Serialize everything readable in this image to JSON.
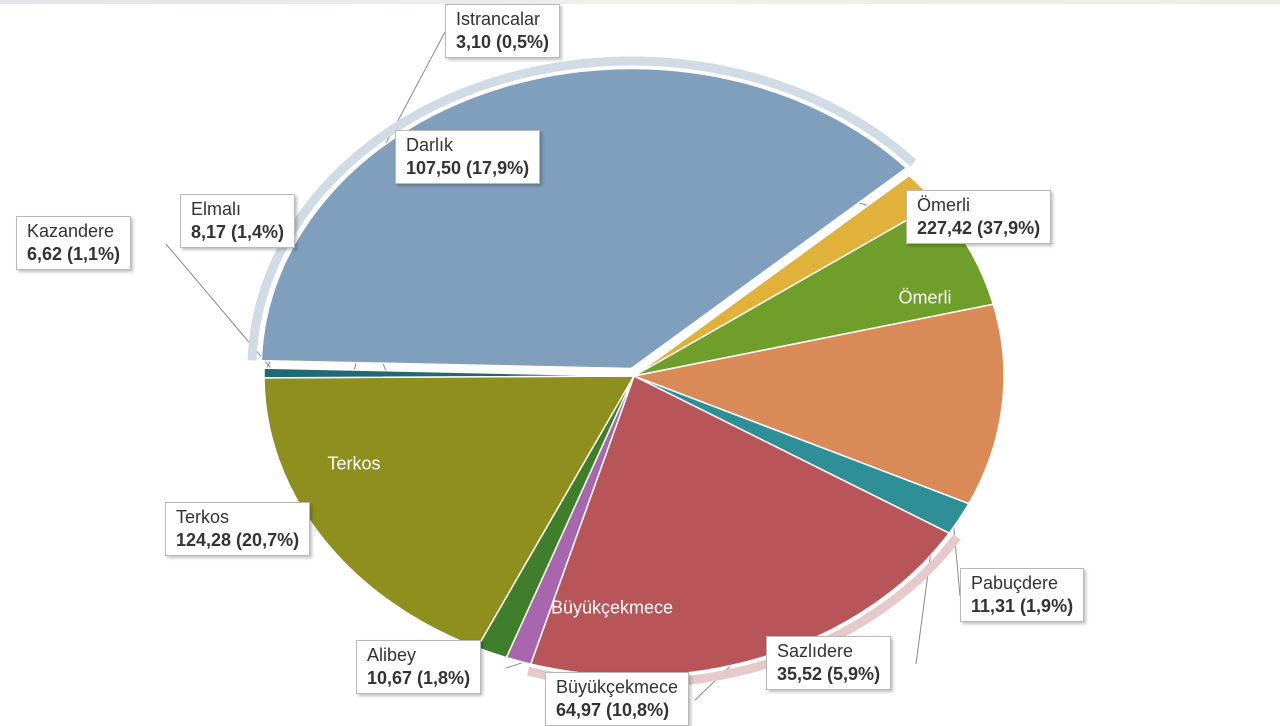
{
  "chart_data": {
    "type": "pie",
    "title": "",
    "slices": [
      {
        "name": "Ömerli",
        "value": 227.42,
        "percent": 37.9,
        "value_label": "227,42 (37,9%)",
        "color": "#7f9fbd",
        "inner_label": "Ömerli"
      },
      {
        "name": "Pabuçdere",
        "value": 11.31,
        "percent": 1.9,
        "value_label": "11,31 (1,9%)",
        "color": "#e0b23a"
      },
      {
        "name": "Sazlıdere",
        "value": 35.52,
        "percent": 5.9,
        "value_label": "35,52 (5,9%)",
        "color": "#6f9e2a"
      },
      {
        "name": "Büyükçekmece",
        "value": 64.97,
        "percent": 10.8,
        "value_label": "64,97 (10,8%)",
        "color": "#d98a56",
        "inner_label": "Büyükçekmece"
      },
      {
        "name": "Alibey",
        "value": 10.67,
        "percent": 1.8,
        "value_label": "10,67 (1,8%)",
        "color": "#2f8f96"
      },
      {
        "name": "Terkos",
        "value": 124.28,
        "percent": 20.7,
        "value_label": "124,28 (20,7%)",
        "color": "#b85558",
        "inner_label": "Terkos"
      },
      {
        "name": "Kazandere",
        "value": 6.62,
        "percent": 1.1,
        "value_label": "6,62 (1,1%)",
        "color": "#a766ae"
      },
      {
        "name": "Elmalı",
        "value": 8.17,
        "percent": 1.4,
        "value_label": "8,17 (1,4%)",
        "color": "#3f7f2c"
      },
      {
        "name": "Darlık",
        "value": 107.5,
        "percent": 17.9,
        "value_label": "107,50 (17,9%)",
        "color": "#8f8f1e"
      },
      {
        "name": "Istrancalar",
        "value": 3.1,
        "percent": 0.5,
        "value_label": "3,10 (0,5%)",
        "color": "#1e6b75"
      }
    ],
    "legend": "none"
  }
}
